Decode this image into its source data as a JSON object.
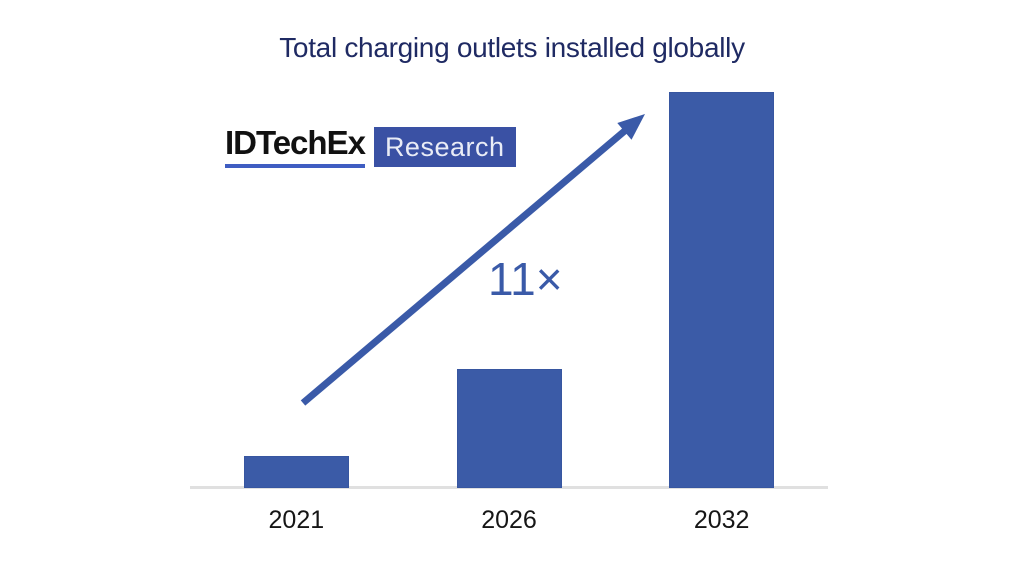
{
  "title": "Total charging outlets installed globally",
  "logo": {
    "brand": "IDTechEx",
    "sub": "Research"
  },
  "annotation": {
    "label": "11×"
  },
  "colors": {
    "bar": "#3b5ba7",
    "arrow": "#3a5aa8",
    "title_text": "#1f2a63",
    "badge_background": "#3a51a4",
    "badge_text": "#e9ecf6",
    "brand_underline": "#3f5dc2",
    "axis_line": "#e0e0e0",
    "axis_label_text": "#161616"
  },
  "chart_data": {
    "type": "bar",
    "title": "Total charging outlets installed globally",
    "categories": [
      "2021",
      "2026",
      "2032"
    ],
    "values": [
      1,
      3.7,
      12.3
    ],
    "xlabel": "",
    "ylabel": "",
    "ylim": [
      0,
      12.3
    ],
    "grid": false,
    "legend": false,
    "value_axis_shown": false,
    "annotation": "11× growth indicated by arrow from 2021 bar to 2032 bar"
  }
}
